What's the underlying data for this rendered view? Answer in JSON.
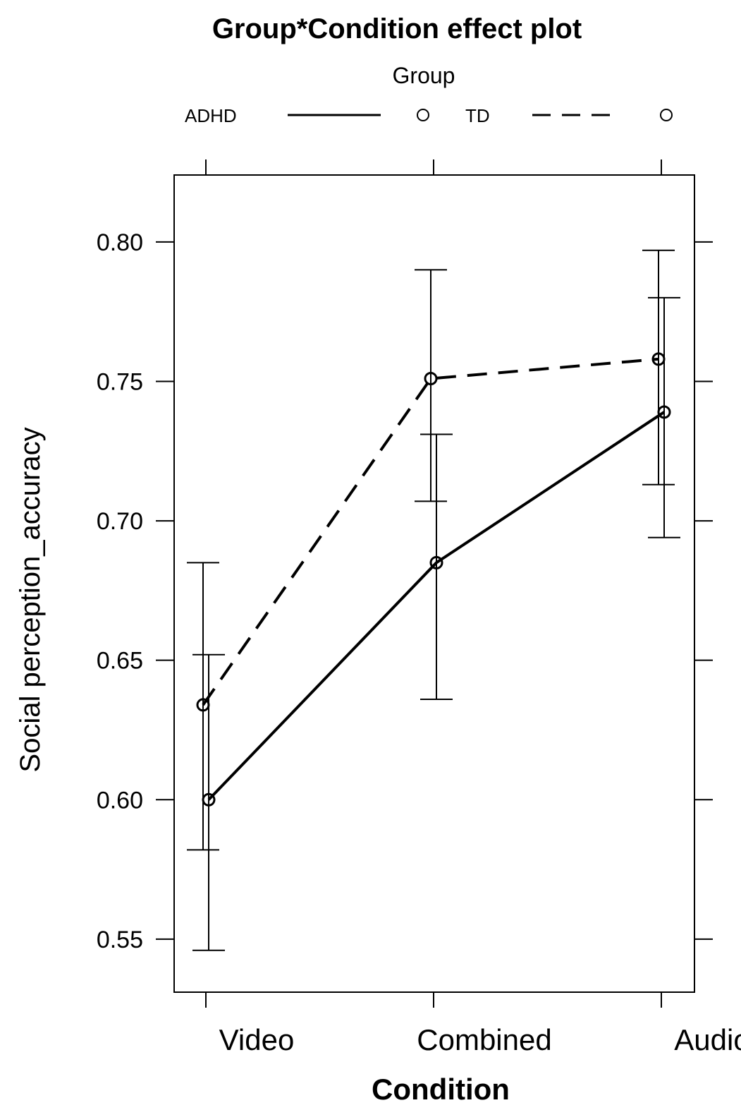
{
  "chart_data": {
    "type": "line",
    "title": "Group*Condition effect plot",
    "legend_title": "Group",
    "legend_position": "top",
    "xlabel": "Condition",
    "ylabel": "Social perception_accuracy",
    "categories": [
      "Video",
      "Combined",
      "Audio"
    ],
    "yticks": [
      "0.55",
      "0.60",
      "0.65",
      "0.70",
      "0.75",
      "0.80"
    ],
    "ylim": [
      0.531,
      0.824
    ],
    "grid": false,
    "series": [
      {
        "name": "ADHD",
        "line_style": "solid",
        "values": [
          0.6,
          0.685,
          0.739
        ],
        "lower": [
          0.546,
          0.636,
          0.694
        ],
        "upper": [
          0.652,
          0.731,
          0.78
        ]
      },
      {
        "name": "TD",
        "line_style": "dashed",
        "values": [
          0.634,
          0.751,
          0.758
        ],
        "lower": [
          0.582,
          0.707,
          0.713
        ],
        "upper": [
          0.685,
          0.79,
          0.797
        ]
      }
    ]
  }
}
